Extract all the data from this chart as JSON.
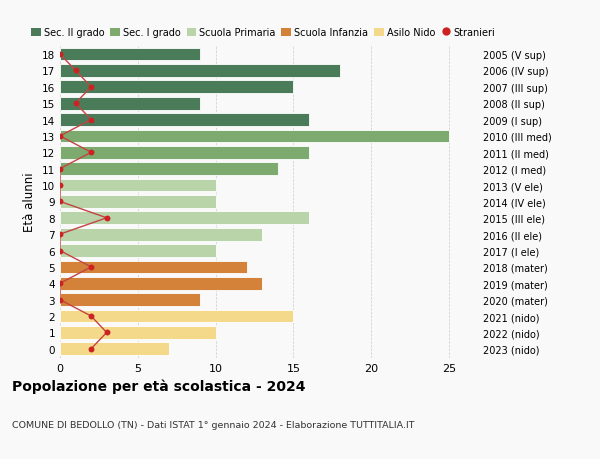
{
  "ages": [
    18,
    17,
    16,
    15,
    14,
    13,
    12,
    11,
    10,
    9,
    8,
    7,
    6,
    5,
    4,
    3,
    2,
    1,
    0
  ],
  "bar_values": [
    9,
    18,
    15,
    9,
    16,
    25,
    16,
    14,
    10,
    10,
    16,
    13,
    10,
    12,
    13,
    9,
    15,
    10,
    7
  ],
  "bar_colors": [
    "#4a7c59",
    "#4a7c59",
    "#4a7c59",
    "#4a7c59",
    "#4a7c59",
    "#7daa6e",
    "#7daa6e",
    "#7daa6e",
    "#b8d4a8",
    "#b8d4a8",
    "#b8d4a8",
    "#b8d4a8",
    "#b8d4a8",
    "#d4823a",
    "#d4823a",
    "#d4823a",
    "#f5d98b",
    "#f5d98b",
    "#f5d98b"
  ],
  "stranieri_x": [
    0,
    1,
    2,
    1,
    2,
    0,
    2,
    0,
    0,
    0,
    3,
    0,
    0,
    2,
    0,
    0,
    2,
    3,
    2
  ],
  "right_labels": [
    "2005 (V sup)",
    "2006 (IV sup)",
    "2007 (III sup)",
    "2008 (II sup)",
    "2009 (I sup)",
    "2010 (III med)",
    "2011 (II med)",
    "2012 (I med)",
    "2013 (V ele)",
    "2014 (IV ele)",
    "2015 (III ele)",
    "2016 (II ele)",
    "2017 (I ele)",
    "2018 (mater)",
    "2019 (mater)",
    "2020 (mater)",
    "2021 (nido)",
    "2022 (nido)",
    "2023 (nido)"
  ],
  "legend_labels": [
    "Sec. II grado",
    "Sec. I grado",
    "Scuola Primaria",
    "Scuola Infanzia",
    "Asilo Nido",
    "Stranieri"
  ],
  "legend_colors": [
    "#4a7c59",
    "#7daa6e",
    "#b8d4a8",
    "#d4823a",
    "#f5d98b",
    "#cc2222"
  ],
  "title": "Popolazione per età scolastica - 2024",
  "subtitle": "COMUNE DI BEDOLLO (TN) - Dati ISTAT 1° gennaio 2024 - Elaborazione TUTTITALIA.IT",
  "ylabel": "Età alunni",
  "xlim": [
    0,
    27
  ],
  "background_color": "#f9f9f9",
  "stranieri_color": "#cc2222",
  "stranieri_line_color": "#c44444"
}
